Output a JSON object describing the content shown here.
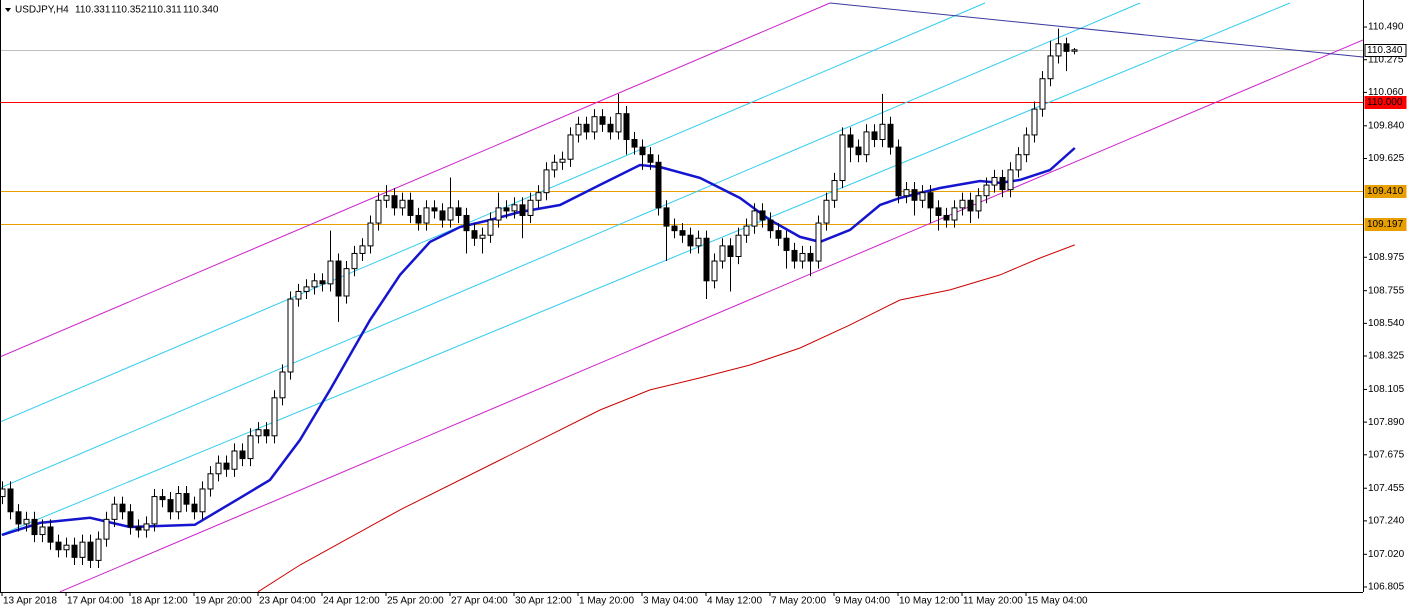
{
  "chart_data": {
    "type": "candlestick",
    "header": {
      "symbol": "USDJPY,H4",
      "quote": [
        "110.331",
        "110.352",
        "110.311",
        "110.340"
      ]
    },
    "xlim": [
      -0.25,
      170.125
    ],
    "ylim": [
      106.772,
      110.668
    ],
    "yticks": [
      {
        "value": 110.49,
        "label": "110.490"
      },
      {
        "value": 110.275,
        "label": "110.275"
      },
      {
        "value": 110.06,
        "label": "110.060"
      },
      {
        "value": 109.84,
        "label": "109.840"
      },
      {
        "value": 109.625,
        "label": "109.625"
      },
      {
        "value": 108.975,
        "label": "108.975"
      },
      {
        "value": 108.755,
        "label": "108.755"
      },
      {
        "value": 108.54,
        "label": "108.540"
      },
      {
        "value": 108.325,
        "label": "108.325"
      },
      {
        "value": 108.105,
        "label": "108.105"
      },
      {
        "value": 107.89,
        "label": "107.890"
      },
      {
        "value": 107.675,
        "label": "107.675"
      },
      {
        "value": 107.455,
        "label": "107.455"
      },
      {
        "value": 107.24,
        "label": "107.240"
      },
      {
        "value": 107.02,
        "label": "107.020"
      },
      {
        "value": 106.805,
        "label": "106.805"
      }
    ],
    "categories": [
      "13 Apr 2018",
      null,
      null,
      null,
      null,
      null,
      null,
      null,
      "17 Apr 04:00",
      null,
      null,
      null,
      null,
      null,
      null,
      null,
      "18 Apr 12:00",
      null,
      null,
      null,
      null,
      null,
      null,
      null,
      "19 Apr 20:00",
      null,
      null,
      null,
      null,
      null,
      null,
      null,
      "23 Apr 04:00",
      null,
      null,
      null,
      null,
      null,
      null,
      null,
      "24 Apr 12:00",
      null,
      null,
      null,
      null,
      null,
      null,
      null,
      "25 Apr 20:00",
      null,
      null,
      null,
      null,
      null,
      null,
      null,
      "27 Apr 04:00",
      null,
      null,
      null,
      null,
      null,
      null,
      null,
      "30 Apr 12:00",
      null,
      null,
      null,
      null,
      null,
      null,
      null,
      "1 May 20:00",
      null,
      null,
      null,
      null,
      null,
      null,
      null,
      "3 May 04:00",
      null,
      null,
      null,
      null,
      null,
      null,
      null,
      "4 May 12:00",
      null,
      null,
      null,
      null,
      null,
      null,
      null,
      "7 May 20:00",
      null,
      null,
      null,
      null,
      null,
      null,
      null,
      "9 May 04:00",
      null,
      null,
      null,
      null,
      null,
      null,
      null,
      "10 May 12:00",
      null,
      null,
      null,
      null,
      null,
      null,
      null,
      "11 May 20:00",
      null,
      null,
      null,
      null,
      null,
      null,
      null,
      "15 May 04:00",
      null,
      null,
      null,
      null,
      null,
      null
    ],
    "candles": [
      [
        107.4,
        107.5,
        107.35,
        107.45
      ],
      [
        107.45,
        107.5,
        107.25,
        107.3
      ],
      [
        107.3,
        107.35,
        107.17,
        107.22
      ],
      [
        107.22,
        107.3,
        107.17,
        107.25
      ],
      [
        107.25,
        107.3,
        107.1,
        107.15
      ],
      [
        107.15,
        107.25,
        107.1,
        107.2
      ],
      [
        107.2,
        107.25,
        107.05,
        107.1
      ],
      [
        107.1,
        107.15,
        107.0,
        107.05
      ],
      [
        107.05,
        107.13,
        107.0,
        107.08
      ],
      [
        107.08,
        107.13,
        106.95,
        107.0
      ],
      [
        107.0,
        107.15,
        106.95,
        107.1
      ],
      [
        107.1,
        107.15,
        106.93,
        106.98
      ],
      [
        106.98,
        107.17,
        106.93,
        107.12
      ],
      [
        107.12,
        107.3,
        107.07,
        107.25
      ],
      [
        107.25,
        107.4,
        107.2,
        107.35
      ],
      [
        107.35,
        107.4,
        107.25,
        107.3
      ],
      [
        107.3,
        107.35,
        107.15,
        107.2
      ],
      [
        107.2,
        107.25,
        107.13,
        107.18
      ],
      [
        107.18,
        107.27,
        107.13,
        107.22
      ],
      [
        107.22,
        107.45,
        107.17,
        107.4
      ],
      [
        107.4,
        107.45,
        107.33,
        107.38
      ],
      [
        107.38,
        107.43,
        107.25,
        107.3
      ],
      [
        107.3,
        107.47,
        107.25,
        107.42
      ],
      [
        107.42,
        107.47,
        107.3,
        107.35
      ],
      [
        107.35,
        107.4,
        107.25,
        107.3
      ],
      [
        107.3,
        107.5,
        107.25,
        107.45
      ],
      [
        107.45,
        107.6,
        107.4,
        107.55
      ],
      [
        107.55,
        107.67,
        107.5,
        107.62
      ],
      [
        107.62,
        107.67,
        107.53,
        107.58
      ],
      [
        107.58,
        107.75,
        107.53,
        107.7
      ],
      [
        107.7,
        107.75,
        107.6,
        107.65
      ],
      [
        107.65,
        107.85,
        107.6,
        107.8
      ],
      [
        107.8,
        107.89,
        107.75,
        107.84
      ],
      [
        107.84,
        107.89,
        107.75,
        107.8
      ],
      [
        107.8,
        108.1,
        107.75,
        108.05
      ],
      [
        108.05,
        108.27,
        108.0,
        108.22
      ],
      [
        108.22,
        108.75,
        108.17,
        108.7
      ],
      [
        108.7,
        108.8,
        108.65,
        108.75
      ],
      [
        108.75,
        108.83,
        108.7,
        108.78
      ],
      [
        108.78,
        108.87,
        108.73,
        108.82
      ],
      [
        108.82,
        108.87,
        108.75,
        108.8
      ],
      [
        108.8,
        109.15,
        108.75,
        108.95
      ],
      [
        108.95,
        109.0,
        108.55,
        108.72
      ],
      [
        108.72,
        108.95,
        108.67,
        108.9
      ],
      [
        108.9,
        109.05,
        108.85,
        109.0
      ],
      [
        109.0,
        109.1,
        108.95,
        109.05
      ],
      [
        109.05,
        109.25,
        109.0,
        109.2
      ],
      [
        109.2,
        109.4,
        109.15,
        109.35
      ],
      [
        109.35,
        109.45,
        109.3,
        109.38
      ],
      [
        109.38,
        109.43,
        109.25,
        109.3
      ],
      [
        109.3,
        109.4,
        109.25,
        109.35
      ],
      [
        109.35,
        109.4,
        109.2,
        109.25
      ],
      [
        109.25,
        109.3,
        109.15,
        109.2
      ],
      [
        109.2,
        109.35,
        109.15,
        109.3
      ],
      [
        109.3,
        109.35,
        109.23,
        109.28
      ],
      [
        109.28,
        109.33,
        109.17,
        109.22
      ],
      [
        109.22,
        109.5,
        109.17,
        109.3
      ],
      [
        109.3,
        109.35,
        109.2,
        109.25
      ],
      [
        109.25,
        109.3,
        109.0,
        109.15
      ],
      [
        109.15,
        109.2,
        109.05,
        109.1
      ],
      [
        109.1,
        109.17,
        109.0,
        109.12
      ],
      [
        109.12,
        109.27,
        109.07,
        109.22
      ],
      [
        109.22,
        109.4,
        109.17,
        109.3
      ],
      [
        109.3,
        109.35,
        109.23,
        109.28
      ],
      [
        109.28,
        109.37,
        109.23,
        109.32
      ],
      [
        109.32,
        109.37,
        109.1,
        109.25
      ],
      [
        109.25,
        109.4,
        109.2,
        109.35
      ],
      [
        109.35,
        109.45,
        109.3,
        109.4
      ],
      [
        109.4,
        109.6,
        109.35,
        109.55
      ],
      [
        109.55,
        109.65,
        109.5,
        109.6
      ],
      [
        109.6,
        109.67,
        109.55,
        109.62
      ],
      [
        109.62,
        109.83,
        109.57,
        109.78
      ],
      [
        109.78,
        109.9,
        109.73,
        109.85
      ],
      [
        109.85,
        109.9,
        109.75,
        109.8
      ],
      [
        109.8,
        109.95,
        109.75,
        109.9
      ],
      [
        109.9,
        109.95,
        109.8,
        109.85
      ],
      [
        109.85,
        109.9,
        109.75,
        109.8
      ],
      [
        109.8,
        110.05,
        109.75,
        109.92
      ],
      [
        109.92,
        109.97,
        109.65,
        109.75
      ],
      [
        109.75,
        109.8,
        109.65,
        109.7
      ],
      [
        109.7,
        109.75,
        109.55,
        109.65
      ],
      [
        109.65,
        109.7,
        109.55,
        109.6
      ],
      [
        109.6,
        109.65,
        109.25,
        109.3
      ],
      [
        109.3,
        109.35,
        108.95,
        109.18
      ],
      [
        109.18,
        109.23,
        109.1,
        109.15
      ],
      [
        109.15,
        109.2,
        109.07,
        109.12
      ],
      [
        109.12,
        109.17,
        109.0,
        109.05
      ],
      [
        109.05,
        109.15,
        109.0,
        109.1
      ],
      [
        109.1,
        109.15,
        108.7,
        108.82
      ],
      [
        108.82,
        109.0,
        108.77,
        108.95
      ],
      [
        108.95,
        109.1,
        108.9,
        109.05
      ],
      [
        109.05,
        109.1,
        108.75,
        108.98
      ],
      [
        108.98,
        109.17,
        108.93,
        109.12
      ],
      [
        109.12,
        109.23,
        109.07,
        109.18
      ],
      [
        109.18,
        109.33,
        109.13,
        109.28
      ],
      [
        109.28,
        109.33,
        109.17,
        109.22
      ],
      [
        109.22,
        109.27,
        109.1,
        109.15
      ],
      [
        109.15,
        109.2,
        109.05,
        109.1
      ],
      [
        109.1,
        109.15,
        108.9,
        109.02
      ],
      [
        109.02,
        109.07,
        108.9,
        108.95
      ],
      [
        108.95,
        109.05,
        108.9,
        109.0
      ],
      [
        109.0,
        109.05,
        108.85,
        108.95
      ],
      [
        108.95,
        109.25,
        108.9,
        109.2
      ],
      [
        109.2,
        109.4,
        109.15,
        109.35
      ],
      [
        109.35,
        109.53,
        109.3,
        109.48
      ],
      [
        109.48,
        109.83,
        109.43,
        109.78
      ],
      [
        109.78,
        109.83,
        109.6,
        109.7
      ],
      [
        109.7,
        109.75,
        109.6,
        109.65
      ],
      [
        109.65,
        109.85,
        109.6,
        109.8
      ],
      [
        109.8,
        109.85,
        109.7,
        109.75
      ],
      [
        109.75,
        110.05,
        109.7,
        109.85
      ],
      [
        109.85,
        109.9,
        109.65,
        109.7
      ],
      [
        109.7,
        109.75,
        109.33,
        109.38
      ],
      [
        109.38,
        109.47,
        109.33,
        109.42
      ],
      [
        109.42,
        109.47,
        109.25,
        109.35
      ],
      [
        109.35,
        109.45,
        109.3,
        109.4
      ],
      [
        109.4,
        109.45,
        109.2,
        109.3
      ],
      [
        109.3,
        109.35,
        109.15,
        109.25
      ],
      [
        109.25,
        109.3,
        109.17,
        109.22
      ],
      [
        109.22,
        109.35,
        109.17,
        109.3
      ],
      [
        109.3,
        109.4,
        109.25,
        109.35
      ],
      [
        109.35,
        109.4,
        109.2,
        109.28
      ],
      [
        109.28,
        109.43,
        109.23,
        109.38
      ],
      [
        109.38,
        109.5,
        109.33,
        109.45
      ],
      [
        109.45,
        109.55,
        109.4,
        109.5
      ],
      [
        109.5,
        109.55,
        109.37,
        109.42
      ],
      [
        109.42,
        109.6,
        109.37,
        109.55
      ],
      [
        109.55,
        109.7,
        109.5,
        109.65
      ],
      [
        109.65,
        109.83,
        109.6,
        109.78
      ],
      [
        109.78,
        110.0,
        109.73,
        109.95
      ],
      [
        109.95,
        110.2,
        109.9,
        110.15
      ],
      [
        110.15,
        110.4,
        110.1,
        110.3
      ],
      [
        110.3,
        110.48,
        110.25,
        110.38
      ],
      [
        110.38,
        110.42,
        110.2,
        110.33
      ],
      [
        110.331,
        110.352,
        110.311,
        110.34
      ]
    ],
    "series": [
      {
        "color": "#1515d0",
        "x": [
          0,
          4.75,
          11,
          16,
          24.1,
          29.75,
          33.5,
          37.25,
          41,
          46,
          49.75,
          53.5,
          57.25,
          61,
          64.75,
          69.75,
          74.75,
          79.75,
          82.25,
          87.25,
          92.25,
          96,
          99.75,
          102.25,
          106,
          109.75,
          112.25,
          117.25,
          122.25,
          124.75,
          127.25,
          131,
          134.1
        ],
        "values": [
          107.148,
          107.227,
          107.26,
          107.2,
          107.214,
          107.391,
          107.51,
          107.773,
          108.102,
          108.562,
          108.859,
          109.076,
          109.174,
          109.22,
          109.273,
          109.319,
          109.451,
          109.582,
          109.569,
          109.497,
          109.365,
          109.22,
          109.109,
          109.076,
          109.155,
          109.319,
          109.365,
          109.431,
          109.477,
          109.464,
          109.484,
          109.549,
          109.694
        ]
      },
      {
        "color": "#cc0000",
        "x": [
          32,
          37.25,
          49.75,
          62.25,
          74.75,
          81,
          87.25,
          93.5,
          99.75,
          106,
          112.25,
          118.5,
          124.75,
          129.75,
          134.1
        ],
        "values": [
          106.773,
          106.95,
          107.312,
          107.641,
          107.97,
          108.102,
          108.181,
          108.266,
          108.378,
          108.53,
          108.694,
          108.76,
          108.859,
          108.97,
          109.056
        ]
      }
    ],
    "trendlines": [
      {
        "color": "#cc22cc",
        "x": [
          -0.25,
          103.5
        ],
        "values": [
          108.319,
          110.648
        ]
      },
      {
        "color": "#cc22cc",
        "x": [
          7.25,
          170.125
        ],
        "values": [
          106.773,
          110.405
        ]
      },
      {
        "color": "#33ccee",
        "x": [
          -0.25,
          122.875
        ],
        "values": [
          107.891,
          110.648
        ]
      },
      {
        "color": "#33ccee",
        "x": [
          -0.25,
          142.25
        ],
        "values": [
          107.457,
          110.648
        ]
      },
      {
        "color": "#33ccee",
        "x": [
          -0.25,
          161
        ],
        "values": [
          107.148,
          110.648
        ]
      },
      {
        "color": "#3a3aa0",
        "x": [
          103.5,
          170.125
        ],
        "values": [
          110.648,
          110.293
        ]
      }
    ],
    "hlines": [
      {
        "value": 110.34,
        "label": "110.340",
        "color": "#c0c0c0"
      },
      {
        "value": 110.0,
        "label": "110.000",
        "color": "#ff0000"
      },
      {
        "value": 109.41,
        "label": "109.410",
        "color": "#e8a000"
      },
      {
        "value": 109.197,
        "label": "109.197",
        "color": "#e8a000"
      }
    ]
  }
}
